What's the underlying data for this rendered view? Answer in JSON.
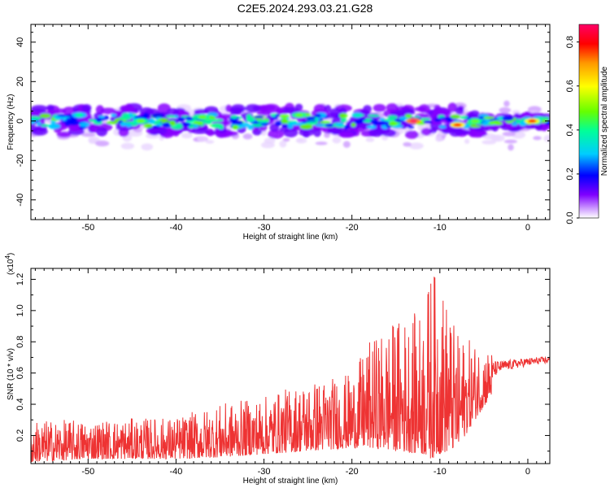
{
  "title": "C2E5.2024.293.03.21.G28",
  "chart_data": [
    {
      "type": "heatmap",
      "xlabel": "Height of straight line (km)",
      "ylabel": "Frequency (Hz)",
      "xlim": [
        -56.5,
        2.5
      ],
      "ylim": [
        -50,
        49
      ],
      "xticks": [
        -50,
        -40,
        -30,
        -20,
        -10,
        0
      ],
      "yticks": [
        -40,
        -20,
        0,
        20,
        40
      ],
      "colorbar": {
        "label": "Normalized spectral amplitude",
        "range": [
          0.0,
          0.88
        ],
        "ticks": [
          0.0,
          0.2,
          0.4,
          0.6,
          0.8
        ],
        "colors": [
          "#ffffff",
          "#cc99ff",
          "#6600ff",
          "#0000ff",
          "#00ccff",
          "#00ff99",
          "#66ff00",
          "#ffff00",
          "#ff9900",
          "#ff0000",
          "#ff0066"
        ]
      },
      "band": {
        "center_frequency_hz": 0,
        "core_halfwidth_hz": 4,
        "halo_halfwidth_hz": 12,
        "peaks": [
          {
            "x": -13,
            "y": 0,
            "value": 0.85
          },
          {
            "x": -8,
            "y": -2,
            "value": 0.78
          },
          {
            "x": 0.5,
            "y": 0,
            "value": 0.75
          },
          {
            "x": -37,
            "y": 2,
            "value": 0.55
          },
          {
            "x": -26,
            "y": 3,
            "value": 0.5
          },
          {
            "x": -44,
            "y": 0,
            "value": 0.5
          },
          {
            "x": -51,
            "y": 3,
            "value": 0.45
          },
          {
            "x": -6,
            "y": 0,
            "value": 0.5
          }
        ]
      }
    },
    {
      "type": "line",
      "xlabel": "Height of straight line (km)",
      "ylabel": "SNR (10 * v/v)",
      "y_multiplier": "(x10",
      "y_multiplier_exp": "4",
      "y_multiplier_close": ")",
      "xlim": [
        -56.5,
        2.5
      ],
      "ylim": [
        0.02,
        1.27
      ],
      "xticks": [
        -50,
        -40,
        -30,
        -20,
        -10,
        0
      ],
      "yticks": [
        0.2,
        0.4,
        0.6,
        0.8,
        1.0,
        1.2
      ],
      "ytick_labels": [
        "0.2",
        "0.4",
        "0.6",
        "0.8",
        "1.0",
        "1.2"
      ],
      "line_color": "#ee3333",
      "envelope": {
        "x": [
          -56.5,
          -50,
          -40,
          -35,
          -30,
          -25,
          -20,
          -18,
          -15,
          -12,
          -11,
          -10,
          -8,
          -6,
          -3,
          0,
          2.5
        ],
        "upper": [
          0.3,
          0.3,
          0.32,
          0.4,
          0.45,
          0.55,
          0.6,
          0.8,
          0.95,
          1.0,
          1.27,
          1.22,
          0.85,
          0.8,
          0.72,
          0.73,
          0.73
        ],
        "lower": [
          0.03,
          0.05,
          0.05,
          0.06,
          0.08,
          0.1,
          0.12,
          0.12,
          0.1,
          0.08,
          0.05,
          0.08,
          0.12,
          0.3,
          0.55,
          0.6,
          0.63
        ]
      }
    }
  ]
}
